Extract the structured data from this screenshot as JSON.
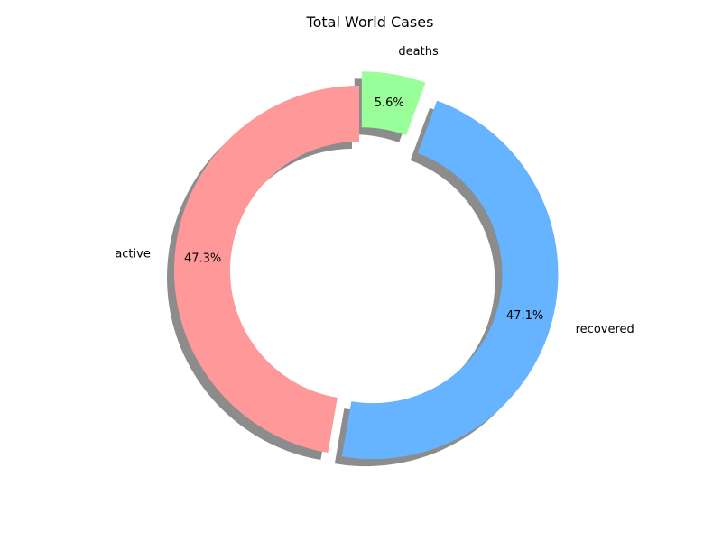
{
  "chart_data": {
    "type": "pie",
    "variant": "donut",
    "title": "Total World Cases",
    "slices": [
      {
        "label": "active",
        "value": 47.3,
        "percent_label": "47.3%",
        "color": "#ff9999",
        "exploded": false
      },
      {
        "label": "recovered",
        "value": 47.1,
        "percent_label": "47.1%",
        "color": "#66b3ff",
        "exploded": true
      },
      {
        "label": "deaths",
        "value": 5.6,
        "percent_label": "5.6%",
        "color": "#99ff99",
        "exploded": true
      }
    ],
    "start_angle_deg": 90,
    "direction": "counterclockwise",
    "shadow": true,
    "legend": "none"
  }
}
